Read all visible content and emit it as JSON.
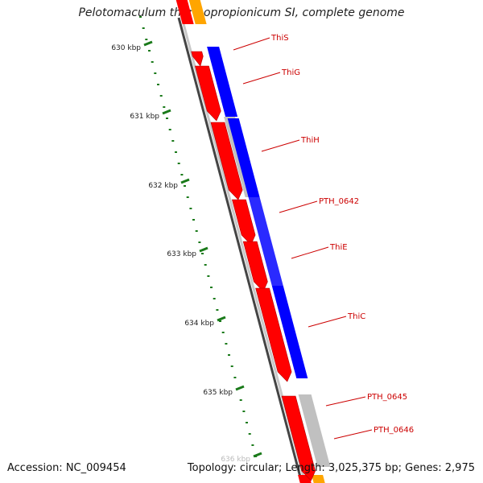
{
  "title": "Pelotomaculum thermopropionicum SI, complete genome",
  "footer": {
    "accession": "Accession: NC_009454",
    "summary": "Topology: circular; Length: 3,025,375 bp; Genes: 2,975"
  },
  "ticks": [
    {
      "label": "630 kbp",
      "kbp": 630
    },
    {
      "label": "631 kbp",
      "kbp": 631
    },
    {
      "label": "632 kbp",
      "kbp": 632
    },
    {
      "label": "633 kbp",
      "kbp": 633
    },
    {
      "label": "634 kbp",
      "kbp": 634
    },
    {
      "label": "635 kbp",
      "kbp": 635
    },
    {
      "label": "636 kbp",
      "kbp": 636
    }
  ],
  "genes": [
    {
      "name": "ThiS"
    },
    {
      "name": "ThiG"
    },
    {
      "name": "ThiH"
    },
    {
      "name": "PTH_0642"
    },
    {
      "name": "ThiE"
    },
    {
      "name": "ThiC"
    },
    {
      "name": "PTH_0645"
    },
    {
      "name": "PTH_0646"
    }
  ],
  "colors": {
    "cds": "#ff0000",
    "blue_track": "#0000ff",
    "gray_track": "#c0c0c0",
    "orange_track": "#ffa500",
    "tick": "#1a7a1a",
    "label": "#cc0000",
    "backbone": "#777777"
  }
}
